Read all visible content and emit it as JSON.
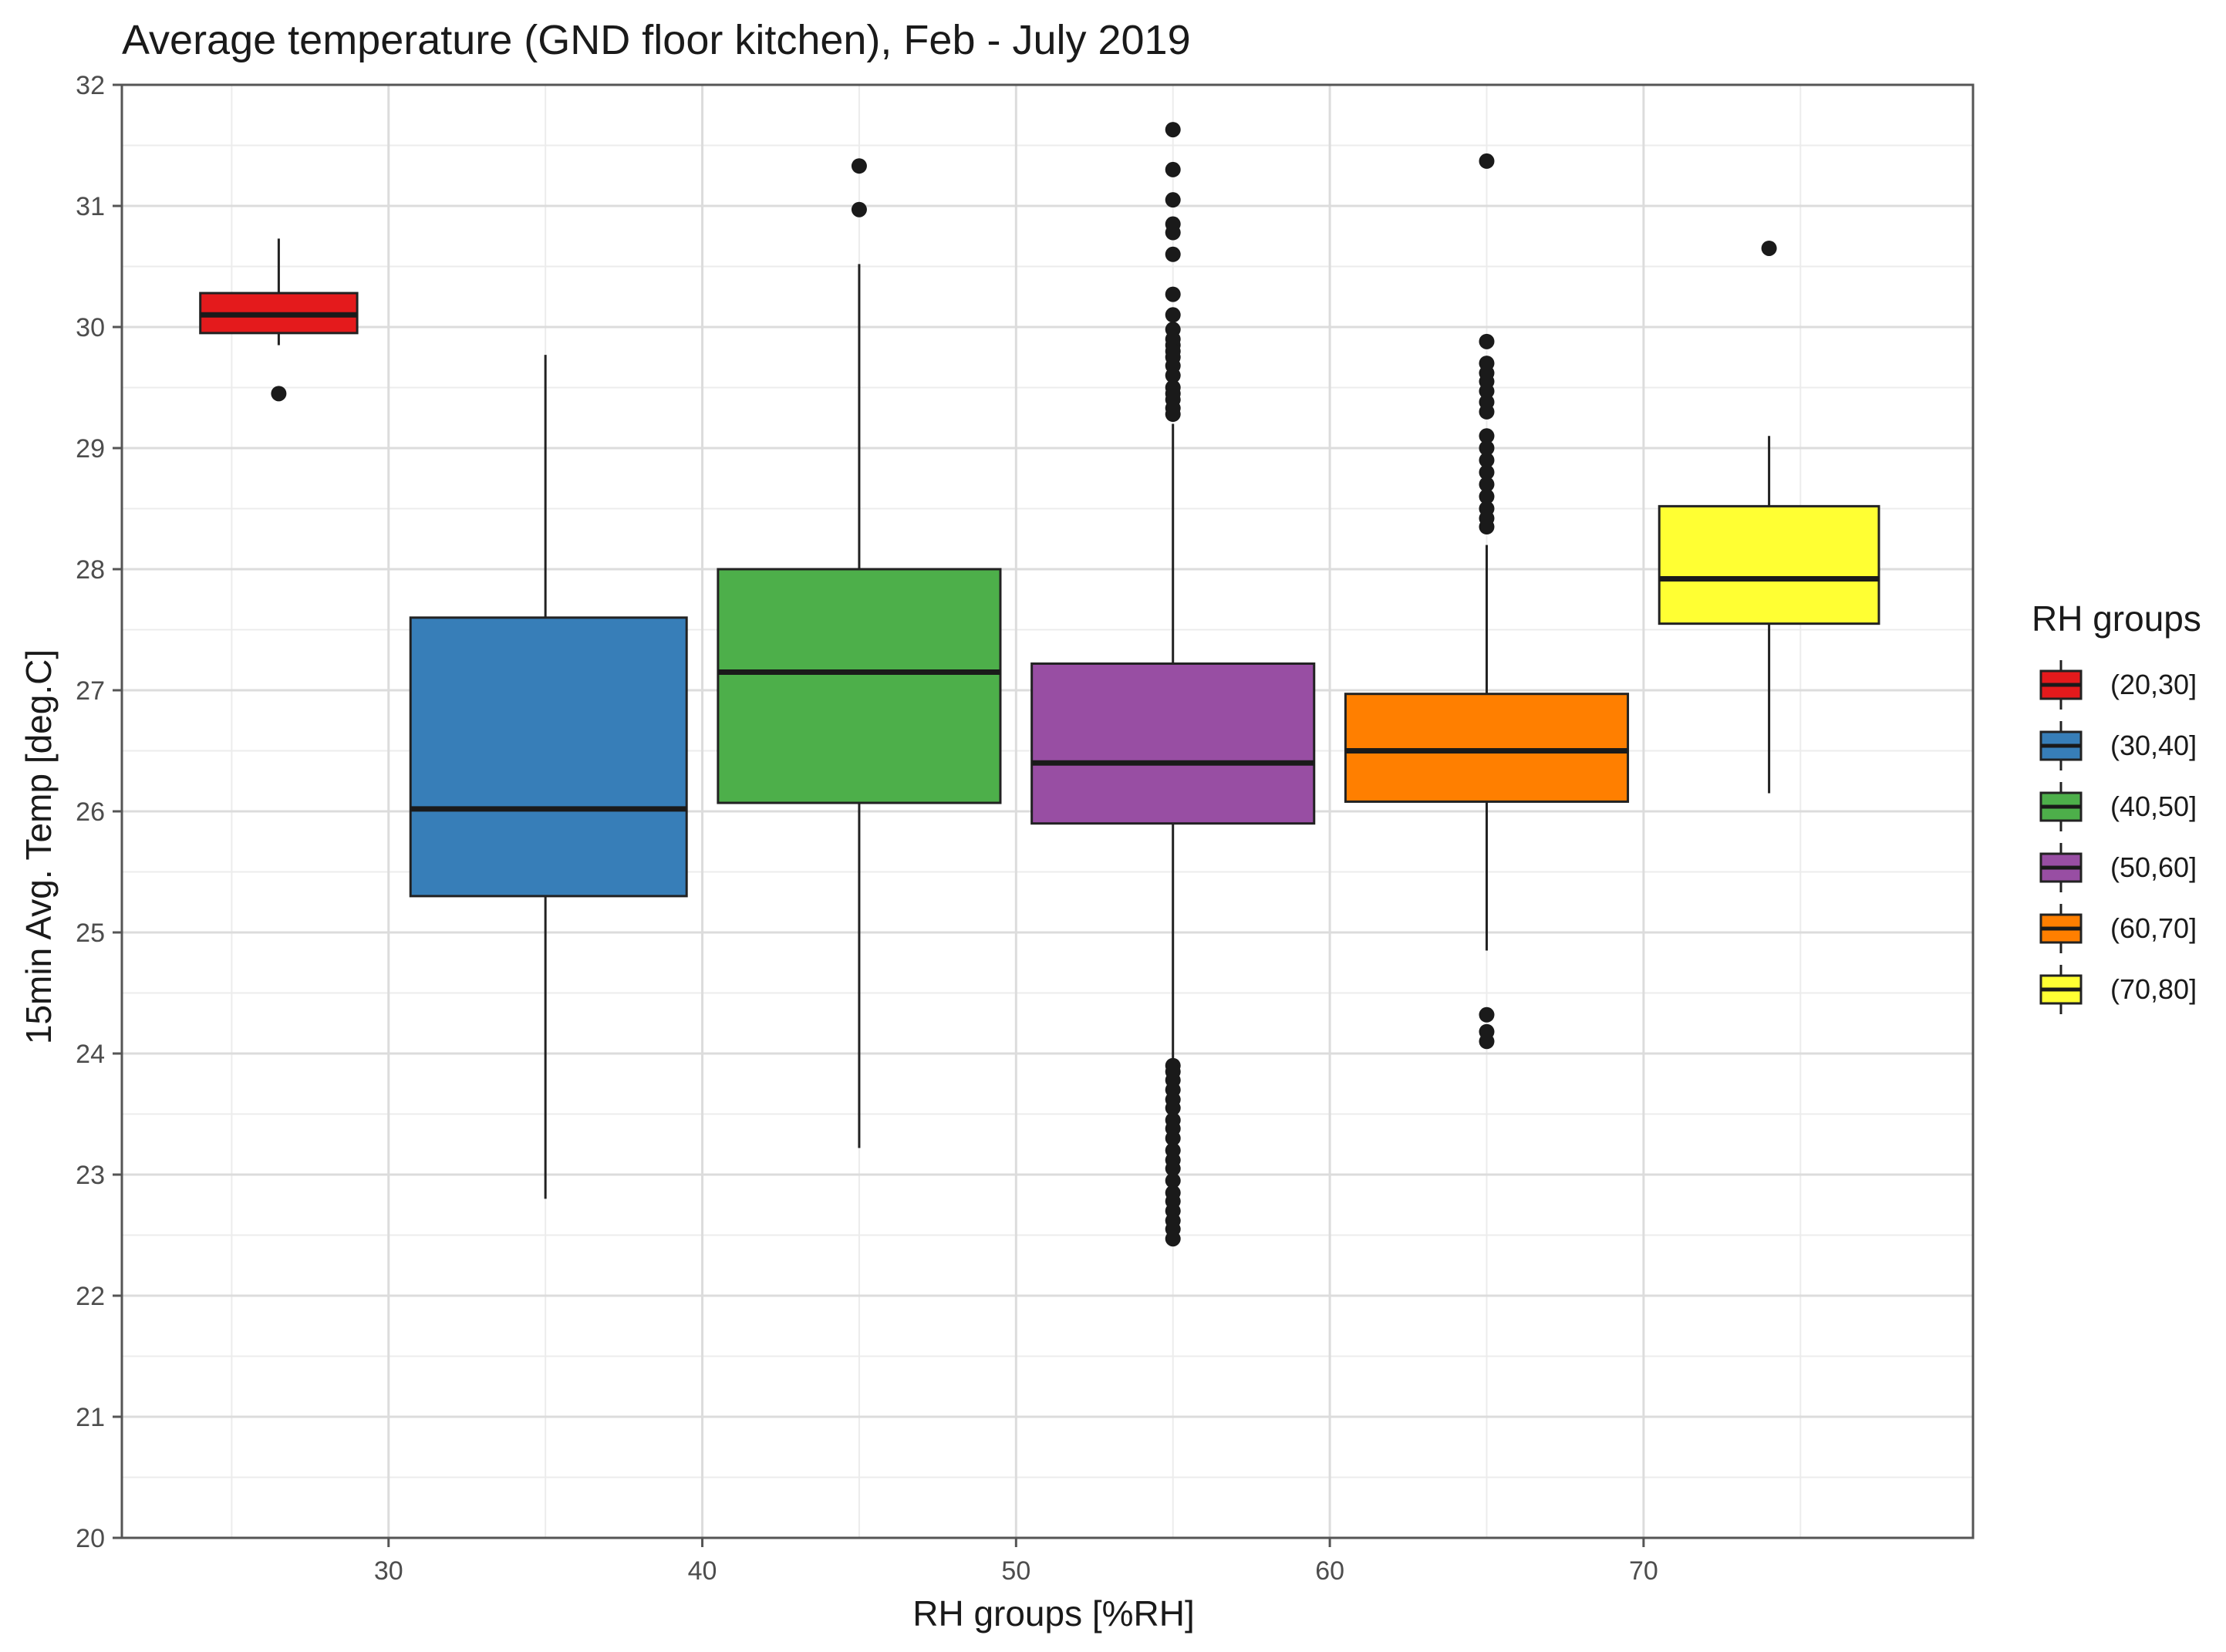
{
  "chart_data": {
    "type": "boxplot",
    "title": "Average temperature (GND floor kitchen), Feb - July 2019",
    "xlabel": "RH groups [%RH]",
    "ylabel": "15min Avg. Temp [deg.C]",
    "xlim": [
      21.5,
      80.5
    ],
    "ylim": [
      20,
      32
    ],
    "x_ticks": [
      30,
      40,
      50,
      60,
      70
    ],
    "y_ticks": [
      20,
      21,
      22,
      23,
      24,
      25,
      26,
      27,
      28,
      29,
      30,
      31,
      32
    ],
    "grid": true,
    "legend": {
      "title": "RH groups",
      "position": "right"
    },
    "series": [
      {
        "name": "(20,30]",
        "color": "#E41A1C",
        "x_center": 26.5,
        "x_range": [
          24,
          29
        ],
        "min": 29.85,
        "q1": 29.95,
        "median": 30.1,
        "q3": 30.28,
        "max": 30.73,
        "outliers": [
          29.45
        ]
      },
      {
        "name": "(30,40]",
        "color": "#377EB8",
        "x_center": 35,
        "x_range": [
          30.7,
          39.5
        ],
        "min": 22.8,
        "q1": 25.3,
        "median": 26.02,
        "q3": 27.6,
        "max": 29.77,
        "outliers": []
      },
      {
        "name": "(40,50]",
        "color": "#4DAF4A",
        "x_center": 45,
        "x_range": [
          40.5,
          49.5
        ],
        "min": 23.22,
        "q1": 26.07,
        "median": 27.15,
        "q3": 28.0,
        "max": 30.52,
        "outliers": [
          30.97,
          31.33
        ]
      },
      {
        "name": "(50,60]",
        "color": "#984EA3",
        "x_center": 55,
        "x_range": [
          50.5,
          59.5
        ],
        "min": 23.95,
        "q1": 25.9,
        "median": 26.4,
        "q3": 27.22,
        "max": 29.2,
        "outliers": [
          31.63,
          31.3,
          31.05,
          30.85,
          30.78,
          30.6,
          30.27,
          30.1,
          29.98,
          29.9,
          29.85,
          29.8,
          29.75,
          29.68,
          29.6,
          29.5,
          29.45,
          29.4,
          29.33,
          29.28,
          23.9,
          23.85,
          23.78,
          23.7,
          23.62,
          23.55,
          23.45,
          23.38,
          23.3,
          23.2,
          23.12,
          23.05,
          22.95,
          22.85,
          22.78,
          22.7,
          22.62,
          22.55,
          22.47
        ]
      },
      {
        "name": "(60,70]",
        "color": "#FF7F00",
        "x_center": 65,
        "x_range": [
          60.5,
          69.5
        ],
        "min": 24.85,
        "q1": 26.08,
        "median": 26.5,
        "q3": 26.97,
        "max": 28.2,
        "outliers": [
          31.37,
          29.88,
          29.7,
          29.62,
          29.55,
          29.47,
          29.38,
          29.3,
          29.1,
          29.0,
          28.9,
          28.8,
          28.7,
          28.6,
          28.5,
          28.42,
          28.35,
          24.32,
          24.18,
          24.1
        ]
      },
      {
        "name": "(70,80]",
        "color": "#FFFF33",
        "x_center": 74,
        "x_range": [
          70.5,
          77.5
        ],
        "min": 26.15,
        "q1": 27.55,
        "median": 27.92,
        "q3": 28.52,
        "max": 29.1,
        "outliers": [
          30.65
        ]
      }
    ]
  }
}
